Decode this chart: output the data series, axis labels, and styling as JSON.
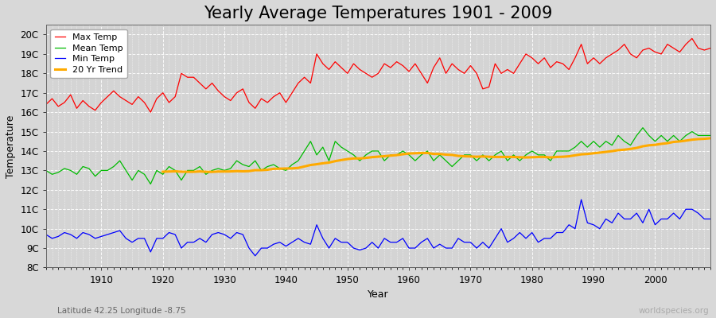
{
  "title": "Yearly Average Temperatures 1901 - 2009",
  "xlabel": "Year",
  "ylabel": "Temperature",
  "bottom_left_label": "Latitude 42.25 Longitude -8.75",
  "bottom_right_label": "worldspecies.org",
  "legend_labels": [
    "Max Temp",
    "Mean Temp",
    "Min Temp",
    "20 Yr Trend"
  ],
  "legend_colors": [
    "#ff0000",
    "#00bb00",
    "#0000ff",
    "#ffaa00"
  ],
  "yticks": [
    8,
    9,
    10,
    11,
    12,
    13,
    14,
    15,
    16,
    17,
    18,
    19,
    20
  ],
  "ytick_labels": [
    "8C",
    "9C",
    "10C",
    "11C",
    "12C",
    "13C",
    "14C",
    "15C",
    "16C",
    "17C",
    "18C",
    "19C",
    "20C"
  ],
  "ylim": [
    8.0,
    20.5
  ],
  "xlim": [
    1901,
    2009
  ],
  "fig_bg_color": "#d8d8d8",
  "plot_bg_color": "#d4d4d4",
  "grid_color": "#ffffff",
  "title_fontsize": 15,
  "axis_label_fontsize": 9,
  "tick_fontsize": 8.5,
  "start_year": 1901,
  "end_year": 2009,
  "max_temp": [
    16.4,
    16.7,
    16.3,
    16.5,
    16.9,
    16.2,
    16.6,
    16.3,
    16.1,
    16.5,
    16.8,
    17.1,
    16.8,
    16.6,
    16.4,
    16.8,
    16.5,
    16.0,
    16.7,
    17.0,
    16.5,
    16.8,
    18.0,
    17.8,
    17.8,
    17.5,
    17.2,
    17.5,
    17.1,
    16.8,
    16.6,
    17.0,
    17.2,
    16.5,
    16.2,
    16.7,
    16.5,
    16.8,
    17.0,
    16.5,
    17.0,
    17.5,
    17.8,
    17.5,
    19.0,
    18.5,
    18.2,
    18.6,
    18.3,
    18.0,
    18.5,
    18.2,
    18.0,
    17.8,
    18.0,
    18.5,
    18.3,
    18.6,
    18.4,
    18.1,
    18.5,
    18.0,
    17.5,
    18.3,
    18.8,
    18.0,
    18.5,
    18.2,
    18.0,
    18.4,
    18.0,
    17.2,
    17.3,
    18.5,
    18.0,
    18.2,
    18.0,
    18.5,
    19.0,
    18.8,
    18.5,
    18.8,
    18.3,
    18.6,
    18.5,
    18.2,
    18.8,
    19.5,
    18.5,
    18.8,
    18.5,
    18.8,
    19.0,
    19.2,
    19.5,
    19.0,
    18.8,
    19.2,
    19.3,
    19.1,
    19.0,
    19.5,
    19.3,
    19.1,
    19.5,
    19.8,
    19.3,
    19.2,
    19.3
  ],
  "mean_temp": [
    13.0,
    12.8,
    12.9,
    13.1,
    13.0,
    12.8,
    13.2,
    13.1,
    12.7,
    13.0,
    13.0,
    13.2,
    13.5,
    13.0,
    12.5,
    13.0,
    12.8,
    12.3,
    13.0,
    12.8,
    13.2,
    13.0,
    12.5,
    13.0,
    13.0,
    13.2,
    12.8,
    13.0,
    13.1,
    13.0,
    13.1,
    13.5,
    13.3,
    13.2,
    13.5,
    13.0,
    13.2,
    13.3,
    13.1,
    13.0,
    13.3,
    13.5,
    14.0,
    14.5,
    13.8,
    14.2,
    13.5,
    14.5,
    14.2,
    14.0,
    13.8,
    13.5,
    13.8,
    14.0,
    14.0,
    13.5,
    13.8,
    13.8,
    14.0,
    13.8,
    13.5,
    13.8,
    14.0,
    13.5,
    13.8,
    13.5,
    13.2,
    13.5,
    13.8,
    13.8,
    13.5,
    13.8,
    13.5,
    13.8,
    14.0,
    13.5,
    13.8,
    13.5,
    13.8,
    14.0,
    13.8,
    13.8,
    13.5,
    14.0,
    14.0,
    14.0,
    14.2,
    14.5,
    14.2,
    14.5,
    14.2,
    14.5,
    14.3,
    14.8,
    14.5,
    14.3,
    14.8,
    15.2,
    14.8,
    14.5,
    14.8,
    14.5,
    14.8,
    14.5,
    14.8,
    15.0,
    14.8,
    14.8,
    14.8
  ],
  "min_temp": [
    9.7,
    9.5,
    9.6,
    9.8,
    9.7,
    9.5,
    9.8,
    9.7,
    9.5,
    9.6,
    9.7,
    9.8,
    9.9,
    9.5,
    9.3,
    9.5,
    9.5,
    8.8,
    9.5,
    9.5,
    9.8,
    9.7,
    9.0,
    9.3,
    9.3,
    9.5,
    9.3,
    9.7,
    9.8,
    9.7,
    9.5,
    9.8,
    9.7,
    9.0,
    8.6,
    9.0,
    9.0,
    9.2,
    9.3,
    9.1,
    9.3,
    9.5,
    9.3,
    9.2,
    10.2,
    9.5,
    9.0,
    9.5,
    9.3,
    9.3,
    9.0,
    8.9,
    9.0,
    9.3,
    9.0,
    9.5,
    9.3,
    9.3,
    9.5,
    9.0,
    9.0,
    9.3,
    9.5,
    9.0,
    9.2,
    9.0,
    9.0,
    9.5,
    9.3,
    9.3,
    9.0,
    9.3,
    9.0,
    9.5,
    10.0,
    9.3,
    9.5,
    9.8,
    9.5,
    9.8,
    9.3,
    9.5,
    9.5,
    9.8,
    9.8,
    10.2,
    10.0,
    11.5,
    10.3,
    10.2,
    10.0,
    10.5,
    10.3,
    10.8,
    10.5,
    10.5,
    10.8,
    10.3,
    11.0,
    10.2,
    10.5,
    10.5,
    10.8,
    10.5,
    11.0,
    11.0,
    10.8,
    10.5,
    10.5
  ]
}
